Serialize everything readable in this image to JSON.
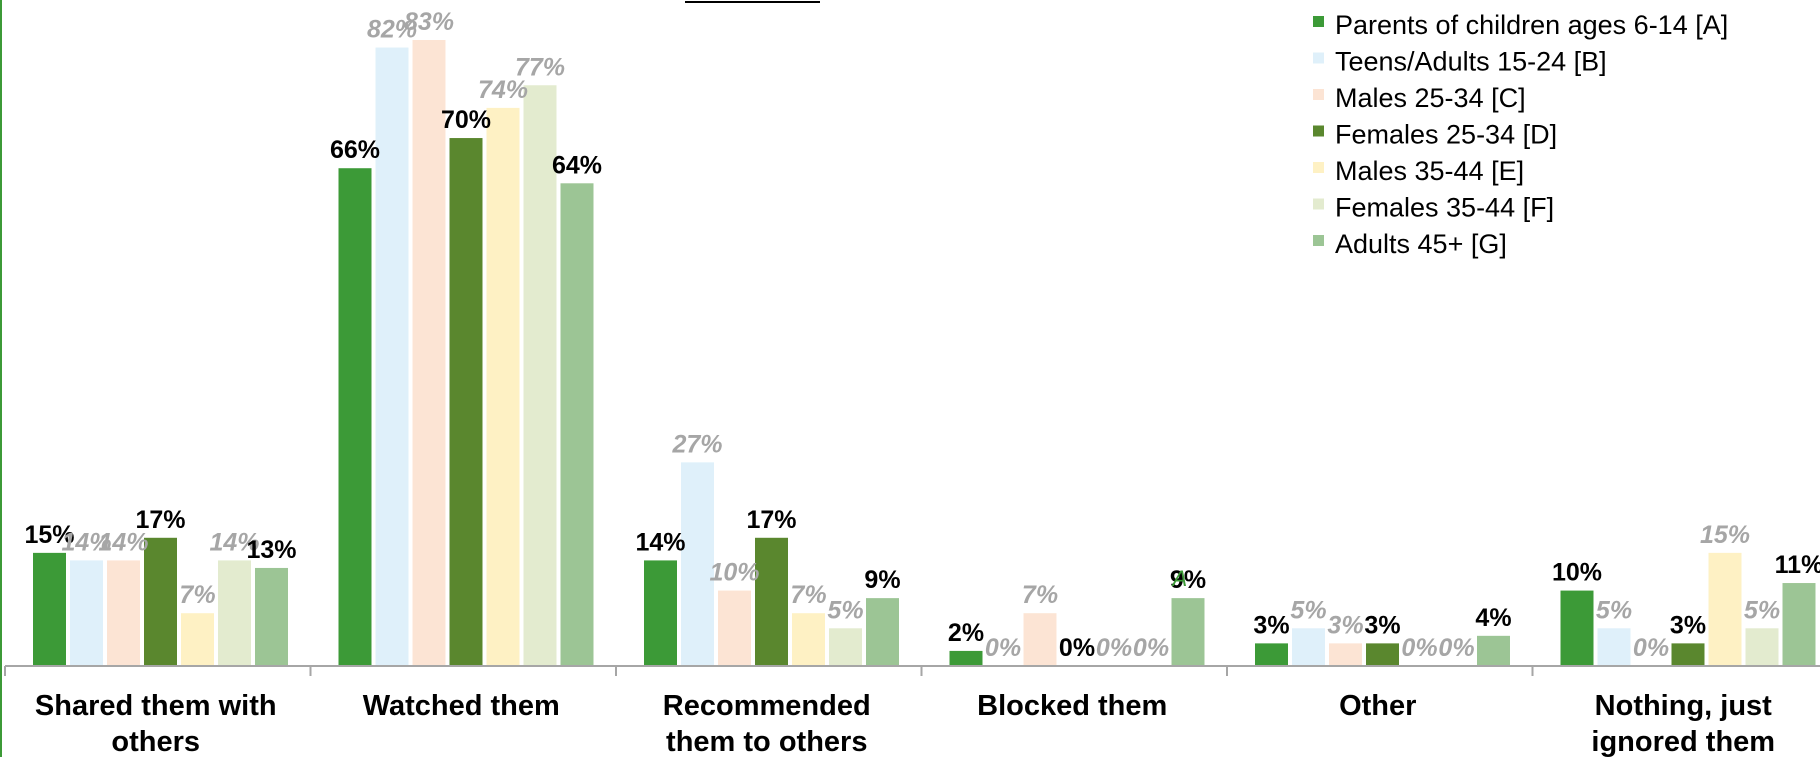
{
  "chart_data": {
    "type": "bar",
    "title": "",
    "xlabel": "",
    "ylabel": "",
    "ylim": [
      0,
      90
    ],
    "grid": false,
    "legend_position": "top-right",
    "categories": [
      [
        "Shared them with",
        "others"
      ],
      [
        "Watched them"
      ],
      [
        "Recommended",
        "them to others"
      ],
      [
        "Blocked them"
      ],
      [
        "Other"
      ],
      [
        "Nothing, just",
        "ignored them"
      ]
    ],
    "series": [
      {
        "name": "Parents of children ages 6-14 [A]",
        "color": "#3c9a37",
        "values": [
          15,
          66,
          14,
          2,
          3,
          10
        ],
        "labels": [
          "15%",
          "66%",
          "14%",
          "2%",
          "3%",
          "10%"
        ],
        "italic": [
          false,
          false,
          false,
          false,
          false,
          false
        ]
      },
      {
        "name": "Teens/Adults 15-24 [B]",
        "color": "#dff0fa",
        "values": [
          14,
          82,
          27,
          0,
          5,
          5
        ],
        "labels": [
          "14%",
          "82%",
          "27%",
          "0%",
          "5%",
          "5%"
        ],
        "italic": [
          true,
          true,
          true,
          true,
          true,
          true
        ]
      },
      {
        "name": "Males 25-34 [C]",
        "color": "#fce4d4",
        "values": [
          14,
          83,
          10,
          7,
          3,
          0
        ],
        "labels": [
          "14%",
          "83%",
          "10%",
          "7%",
          "3%",
          "0%"
        ],
        "italic": [
          true,
          true,
          true,
          true,
          true,
          true
        ]
      },
      {
        "name": "Females 25-34 [D]",
        "color": "#5a872e",
        "values": [
          17,
          70,
          17,
          0,
          3,
          3
        ],
        "labels": [
          "17%",
          "70%",
          "17%",
          "0%",
          "3%",
          "3%"
        ],
        "italic": [
          false,
          false,
          false,
          false,
          false,
          false
        ]
      },
      {
        "name": "Males 35-44 [E]",
        "color": "#fef1c4",
        "values": [
          7,
          74,
          7,
          0,
          0,
          15
        ],
        "labels": [
          "7%",
          "74%",
          "7%",
          "0%",
          "0%",
          "15%"
        ],
        "italic": [
          true,
          true,
          true,
          true,
          true,
          true
        ]
      },
      {
        "name": "Females 35-44 [F]",
        "color": "#e3ebcf",
        "values": [
          14,
          77,
          5,
          0,
          0,
          5
        ],
        "labels": [
          "14%",
          "77%",
          "5%",
          "0%",
          "0%",
          "5%"
        ],
        "italic": [
          true,
          true,
          true,
          true,
          true,
          true
        ]
      },
      {
        "name": "Adults 45+ [G]",
        "color": "#9cc595",
        "values": [
          13,
          64,
          9,
          9,
          4,
          11
        ],
        "labels": [
          "13%",
          "64%",
          "9%",
          "9%",
          "4%",
          "11%"
        ],
        "italic": [
          false,
          false,
          false,
          false,
          false,
          false
        ]
      }
    ],
    "annotations": [
      {
        "category_index": 3,
        "series_index": 6,
        "text": "A",
        "color": "#3c9a37"
      }
    ]
  },
  "colors": {
    "axis": "#a6a6a6",
    "frame": "#3c9a37",
    "bold_label": "#000000",
    "italic_label": "#a6a6a6"
  }
}
